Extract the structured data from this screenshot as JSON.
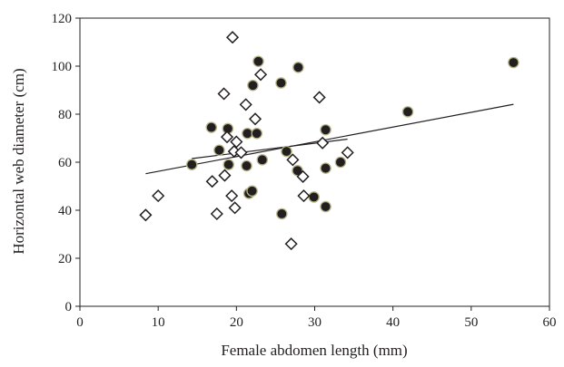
{
  "chart_data": {
    "type": "scatter",
    "title": "",
    "xlabel": "Female abdomen length (mm)",
    "ylabel": "Horizontal web diameter (cm)",
    "xlim": [
      0,
      60
    ],
    "ylim": [
      0,
      120
    ],
    "xticks": [
      0,
      10,
      20,
      30,
      40,
      50,
      60
    ],
    "yticks": [
      0,
      20,
      40,
      60,
      80,
      100,
      120
    ],
    "grid": false,
    "legend": "none",
    "series": [
      {
        "marker": "filled-circle",
        "color": "#231f20",
        "edge_color": "#b7b58a",
        "points": [
          [
            14.3,
            59
          ],
          [
            16.8,
            74.5
          ],
          [
            17.8,
            65
          ],
          [
            18.9,
            74
          ],
          [
            19.0,
            59
          ],
          [
            21.3,
            58.5
          ],
          [
            21.4,
            72
          ],
          [
            21.6,
            47
          ],
          [
            22.0,
            48
          ],
          [
            22.1,
            92
          ],
          [
            22.6,
            72
          ],
          [
            22.8,
            102
          ],
          [
            23.3,
            61
          ],
          [
            25.7,
            93
          ],
          [
            25.8,
            38.5
          ],
          [
            26.4,
            64.5
          ],
          [
            27.8,
            56.5
          ],
          [
            27.9,
            99.5
          ],
          [
            29.9,
            45.5
          ],
          [
            31.4,
            73.5
          ],
          [
            31.4,
            57.5
          ],
          [
            31.4,
            41.5
          ],
          [
            33.3,
            60
          ],
          [
            41.9,
            81
          ],
          [
            55.4,
            101.5
          ]
        ]
      },
      {
        "marker": "open-diamond",
        "color": "#231f20",
        "points": [
          [
            8.4,
            38
          ],
          [
            10.0,
            46
          ],
          [
            16.9,
            52
          ],
          [
            17.5,
            38.5
          ],
          [
            18.4,
            88.5
          ],
          [
            18.5,
            54.5
          ],
          [
            18.8,
            70.5
          ],
          [
            19.4,
            46
          ],
          [
            19.5,
            112
          ],
          [
            19.7,
            64.5
          ],
          [
            19.8,
            41
          ],
          [
            20.0,
            68.5
          ],
          [
            20.6,
            64
          ],
          [
            21.2,
            84
          ],
          [
            22.4,
            78
          ],
          [
            23.1,
            96.5
          ],
          [
            27.0,
            26
          ],
          [
            27.2,
            61
          ],
          [
            28.5,
            54
          ],
          [
            28.6,
            46
          ],
          [
            30.6,
            87
          ],
          [
            31.0,
            68
          ],
          [
            34.2,
            64
          ]
        ]
      }
    ],
    "trendlines": [
      {
        "x": [
          8.4,
          55.4
        ],
        "y": [
          55.2,
          84.1
        ]
      },
      {
        "x": [
          14.3,
          34.2
        ],
        "y": [
          61.5,
          69.6
        ]
      }
    ]
  }
}
